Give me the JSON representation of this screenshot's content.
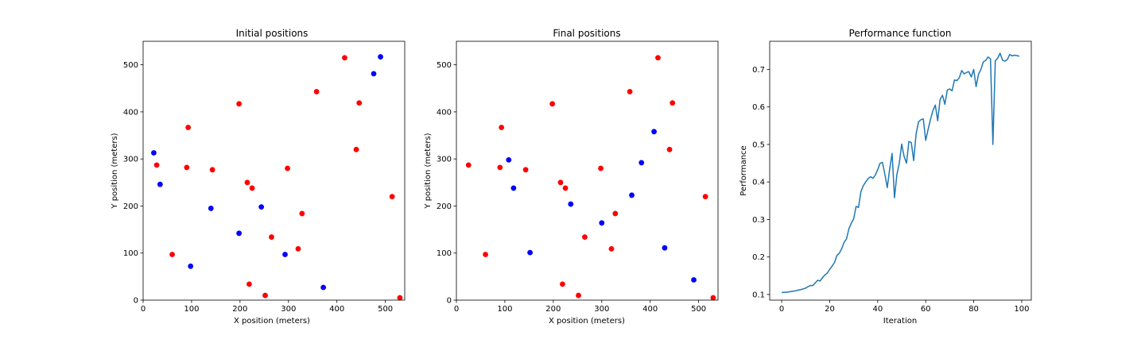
{
  "chart_data": [
    {
      "type": "scatter",
      "title": "Initial positions",
      "xlabel": "X position (meters)",
      "ylabel": "Y position (meters)",
      "xlim": [
        0,
        540
      ],
      "ylim": [
        0,
        550
      ],
      "xticks": [
        0,
        100,
        200,
        300,
        400,
        500
      ],
      "yticks": [
        0,
        100,
        200,
        300,
        400,
        500
      ],
      "grid": false,
      "series": [
        {
          "color": "#ff0000",
          "points": [
            [
              28,
              287
            ],
            [
              60,
              97
            ],
            [
              90,
              282
            ],
            [
              93,
              367
            ],
            [
              143,
              277
            ],
            [
              198,
              417
            ],
            [
              215,
              250
            ],
            [
              219,
              34
            ],
            [
              225,
              238
            ],
            [
              252,
              10
            ],
            [
              265,
              134
            ],
            [
              298,
              280
            ],
            [
              320,
              109
            ],
            [
              328,
              184
            ],
            [
              358,
              443
            ],
            [
              416,
              515
            ],
            [
              440,
              320
            ],
            [
              446,
              419
            ],
            [
              514,
              220
            ],
            [
              530,
              5
            ]
          ]
        },
        {
          "color": "#0000ff",
          "points": [
            [
              22,
              313
            ],
            [
              35,
              246
            ],
            [
              98,
              72
            ],
            [
              140,
              195
            ],
            [
              198,
              142
            ],
            [
              244,
              198
            ],
            [
              293,
              97
            ],
            [
              372,
              27
            ],
            [
              476,
              481
            ],
            [
              490,
              517
            ]
          ]
        }
      ]
    },
    {
      "type": "scatter",
      "title": "Final positions",
      "xlabel": "X position (meters)",
      "ylabel": "Y position (meters)",
      "xlim": [
        0,
        540
      ],
      "ylim": [
        0,
        550
      ],
      "xticks": [
        0,
        100,
        200,
        300,
        400,
        500
      ],
      "yticks": [
        0,
        100,
        200,
        300,
        400,
        500
      ],
      "grid": false,
      "series": [
        {
          "color": "#ff0000",
          "points": [
            [
              25,
              287
            ],
            [
              60,
              97
            ],
            [
              90,
              282
            ],
            [
              93,
              367
            ],
            [
              143,
              277
            ],
            [
              198,
              417
            ],
            [
              215,
              250
            ],
            [
              219,
              34
            ],
            [
              225,
              238
            ],
            [
              252,
              10
            ],
            [
              265,
              134
            ],
            [
              298,
              280
            ],
            [
              320,
              109
            ],
            [
              328,
              184
            ],
            [
              358,
              443
            ],
            [
              416,
              515
            ],
            [
              440,
              320
            ],
            [
              446,
              419
            ],
            [
              514,
              220
            ],
            [
              530,
              5
            ]
          ]
        },
        {
          "color": "#0000ff",
          "points": [
            [
              108,
              298
            ],
            [
              118,
              238
            ],
            [
              152,
              101
            ],
            [
              236,
              204
            ],
            [
              300,
              164
            ],
            [
              362,
              223
            ],
            [
              382,
              292
            ],
            [
              408,
              358
            ],
            [
              430,
              111
            ],
            [
              490,
              43
            ]
          ]
        }
      ]
    },
    {
      "type": "line",
      "title": "Performance function",
      "xlabel": "Iteration",
      "ylabel": "Performance",
      "xlim": [
        -5,
        104
      ],
      "ylim": [
        0.085,
        0.775
      ],
      "xticks": [
        0,
        20,
        40,
        60,
        80,
        100
      ],
      "yticks": [
        0.1,
        0.2,
        0.3,
        0.4,
        0.5,
        0.6,
        0.7
      ],
      "grid": false,
      "series": [
        {
          "color": "#1f77b4",
          "x": [
            0,
            1,
            2,
            3,
            4,
            5,
            6,
            7,
            8,
            9,
            10,
            11,
            12,
            13,
            14,
            15,
            16,
            17,
            18,
            19,
            20,
            21,
            22,
            23,
            24,
            25,
            26,
            27,
            28,
            29,
            30,
            31,
            32,
            33,
            34,
            35,
            36,
            37,
            38,
            39,
            40,
            41,
            42,
            43,
            44,
            45,
            46,
            47,
            48,
            49,
            50,
            51,
            52,
            53,
            54,
            55,
            56,
            57,
            58,
            59,
            60,
            61,
            62,
            63,
            64,
            65,
            66,
            67,
            68,
            69,
            70,
            71,
            72,
            73,
            74,
            75,
            76,
            77,
            78,
            79,
            80,
            81,
            82,
            83,
            84,
            85,
            86,
            87,
            88,
            89,
            90,
            91,
            92,
            93,
            94,
            95,
            96,
            97,
            98,
            99
          ],
          "y": [
            0.105,
            0.106,
            0.106,
            0.107,
            0.108,
            0.109,
            0.11,
            0.112,
            0.113,
            0.115,
            0.117,
            0.121,
            0.124,
            0.124,
            0.131,
            0.138,
            0.136,
            0.145,
            0.152,
            0.157,
            0.167,
            0.176,
            0.185,
            0.204,
            0.21,
            0.222,
            0.239,
            0.248,
            0.275,
            0.29,
            0.302,
            0.335,
            0.332,
            0.374,
            0.39,
            0.4,
            0.409,
            0.414,
            0.41,
            0.418,
            0.433,
            0.45,
            0.452,
            0.42,
            0.385,
            0.435,
            0.476,
            0.358,
            0.42,
            0.45,
            0.501,
            0.468,
            0.45,
            0.508,
            0.505,
            0.457,
            0.528,
            0.56,
            0.566,
            0.568,
            0.511,
            0.54,
            0.567,
            0.59,
            0.605,
            0.563,
            0.62,
            0.631,
            0.607,
            0.645,
            0.648,
            0.643,
            0.672,
            0.67,
            0.678,
            0.697,
            0.688,
            0.692,
            0.694,
            0.68,
            0.7,
            0.654,
            0.687,
            0.7,
            0.72,
            0.724,
            0.733,
            0.728,
            0.5,
            0.723,
            0.73,
            0.743,
            0.725,
            0.722,
            0.726,
            0.74,
            0.736,
            0.738,
            0.737,
            0.735
          ]
        }
      ]
    }
  ]
}
